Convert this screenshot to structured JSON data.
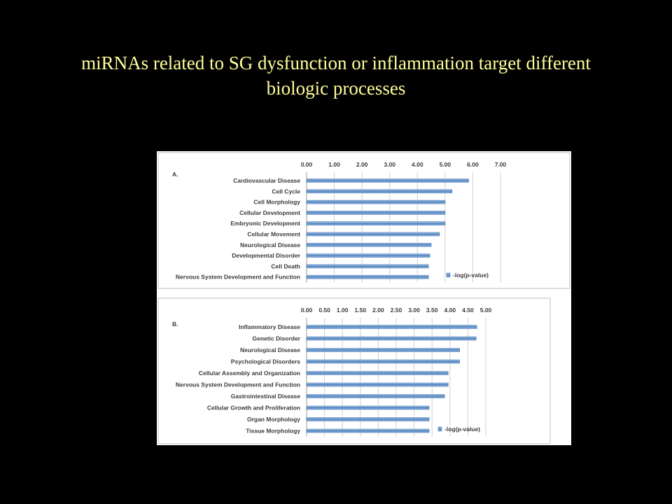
{
  "slide": {
    "title_line1": "miRNAs related to SG dysfunction or inflammation target different",
    "title_line2": "biologic processes"
  },
  "colors": {
    "background": "#000000",
    "title": "#ffff99",
    "bar_fill": "#4f81bd",
    "bar_light": "#bcd3ee"
  },
  "chart_data": [
    {
      "type": "bar",
      "orientation": "horizontal",
      "panel_label": "A.",
      "categories": [
        "Cardiovascular Disease",
        "Cell Cycle",
        "Cell Morphology",
        "Cellular Development",
        "Embryonic Development",
        "Cellular Movement",
        "Neurological Disease",
        "Developmental Disorder",
        "Cell Death",
        "Nervous System Development and Function"
      ],
      "series": [
        {
          "name": "-log(p-value)",
          "values": [
            5.85,
            5.25,
            5.0,
            5.0,
            5.0,
            4.8,
            4.5,
            4.45,
            4.4,
            4.4
          ]
        }
      ],
      "xlim": [
        0,
        7
      ],
      "xticks": [
        "0.00",
        "1.00",
        "2.00",
        "3.00",
        "4.00",
        "5.00",
        "6.00",
        "7.00"
      ],
      "legend_position": "bottom-right",
      "grid": true
    },
    {
      "type": "bar",
      "orientation": "horizontal",
      "panel_label": "B.",
      "categories": [
        "Inflammatory Disease",
        "Genetic Disorder",
        "Neurological Disease",
        "Psychological Disorders",
        "Cellular Assembly and Organization",
        "Nervous System Development and Function",
        "Gastrointestinal Disease",
        "Cellular Growth and Proliferation",
        "Organ Morphology",
        "Tissue Morphology"
      ],
      "series": [
        {
          "name": "-log(p-value)",
          "values": [
            4.75,
            4.73,
            4.27,
            4.27,
            3.95,
            3.95,
            3.85,
            3.42,
            3.42,
            3.42
          ]
        }
      ],
      "xlim": [
        0,
        5
      ],
      "xticks": [
        "0.00",
        "0.50",
        "1.00",
        "1.50",
        "2.00",
        "2.50",
        "3.00",
        "3.50",
        "4.00",
        "4.50",
        "5.00"
      ],
      "legend_position": "bottom-right",
      "grid": true
    }
  ]
}
